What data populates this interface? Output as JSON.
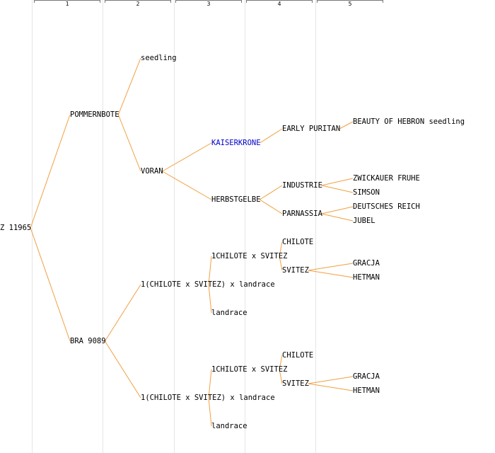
{
  "colors": {
    "edge": "#f0a040",
    "text": "#000000",
    "highlight": "#0000cc",
    "separator": "#e6e6e6",
    "bracket": "#777777"
  },
  "generations": [
    "1",
    "2",
    "3",
    "4",
    "5"
  ],
  "nodes": [
    {
      "id": "root",
      "label": "Z 11965"
    },
    {
      "id": "g1a",
      "label": "POMMERNBOTE"
    },
    {
      "id": "g1b",
      "label": "BRA 9089"
    },
    {
      "id": "g2a",
      "label": "seedling"
    },
    {
      "id": "g2b",
      "label": "VORAN"
    },
    {
      "id": "g2c",
      "label": "1(CHILOTE x SVITEZ) x landrace"
    },
    {
      "id": "g2d",
      "label": "1(CHILOTE x SVITEZ) x landrace"
    },
    {
      "id": "g3a",
      "label": "KAISERKRONE",
      "highlight": true
    },
    {
      "id": "g3b",
      "label": "HERBSTGELBE"
    },
    {
      "id": "g3c",
      "label": "1CHILOTE x SVITEZ"
    },
    {
      "id": "g3d",
      "label": "landrace"
    },
    {
      "id": "g3e",
      "label": "1CHILOTE x SVITEZ"
    },
    {
      "id": "g3f",
      "label": "landrace"
    },
    {
      "id": "g4a",
      "label": "EARLY PURITAN"
    },
    {
      "id": "g4b",
      "label": "INDUSTRIE"
    },
    {
      "id": "g4c",
      "label": "PARNASSIA"
    },
    {
      "id": "g4d",
      "label": "CHILOTE"
    },
    {
      "id": "g4e",
      "label": "SVITEZ"
    },
    {
      "id": "g4f",
      "label": "CHILOTE"
    },
    {
      "id": "g4g",
      "label": "SVITEZ"
    },
    {
      "id": "g5a",
      "label": "BEAUTY OF HEBRON seedling"
    },
    {
      "id": "g5b",
      "label": "ZWICKAUER FRUHE"
    },
    {
      "id": "g5c",
      "label": "SIMSON"
    },
    {
      "id": "g5d",
      "label": "DEUTSCHES REICH"
    },
    {
      "id": "g5e",
      "label": "JUBEL"
    },
    {
      "id": "g5f",
      "label": "GRACJA"
    },
    {
      "id": "g5g",
      "label": "HETMAN"
    },
    {
      "id": "g5h",
      "label": "GRACJA"
    },
    {
      "id": "g5i",
      "label": "HETMAN"
    }
  ],
  "edges": [
    [
      "root",
      "g1a"
    ],
    [
      "root",
      "g1b"
    ],
    [
      "g1a",
      "g2a"
    ],
    [
      "g1a",
      "g2b"
    ],
    [
      "g1b",
      "g2c"
    ],
    [
      "g1b",
      "g2d"
    ],
    [
      "g2b",
      "g3a"
    ],
    [
      "g2b",
      "g3b"
    ],
    [
      "g2c",
      "g3c"
    ],
    [
      "g2c",
      "g3d"
    ],
    [
      "g2d",
      "g3e"
    ],
    [
      "g2d",
      "g3f"
    ],
    [
      "g3a",
      "g4a"
    ],
    [
      "g3b",
      "g4b"
    ],
    [
      "g3b",
      "g4c"
    ],
    [
      "g3c",
      "g4d"
    ],
    [
      "g3c",
      "g4e"
    ],
    [
      "g3e",
      "g4f"
    ],
    [
      "g3e",
      "g4g"
    ],
    [
      "g4a",
      "g5a"
    ],
    [
      "g4b",
      "g5b"
    ],
    [
      "g4b",
      "g5c"
    ],
    [
      "g4c",
      "g5d"
    ],
    [
      "g4c",
      "g5e"
    ],
    [
      "g4e",
      "g5f"
    ],
    [
      "g4e",
      "g5g"
    ],
    [
      "g4g",
      "g5h"
    ],
    [
      "g4g",
      "g5i"
    ]
  ]
}
